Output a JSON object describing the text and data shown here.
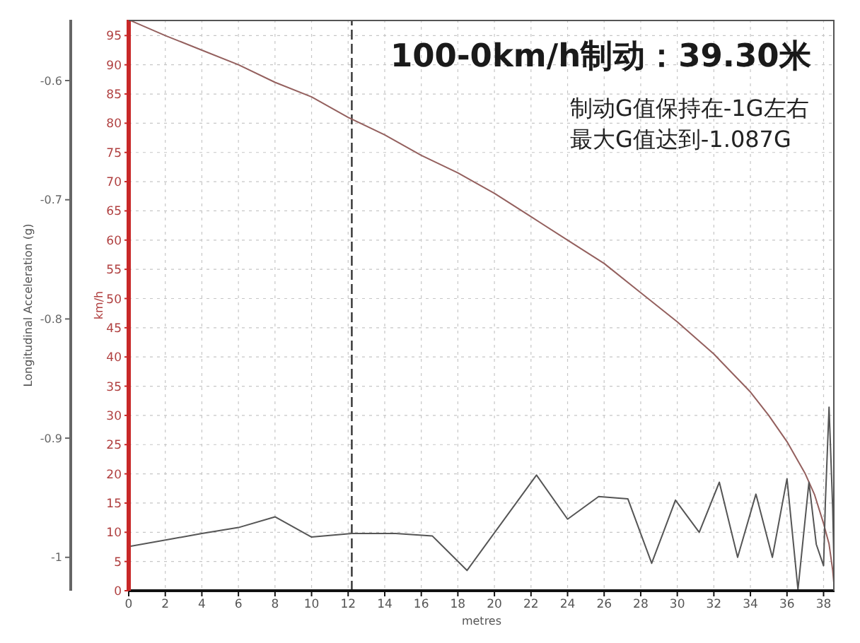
{
  "chart_data": {
    "type": "line",
    "title": "100-0km/h制动：39.30米",
    "annotations": [
      "制动G值保持在-1G左右",
      "最大G值达到-1.087G"
    ],
    "xlabel": "metres",
    "ylabel": "km/h",
    "y2label": "Longitudinal Acceleration (g)",
    "xlim": [
      0,
      38.6
    ],
    "xticks": [
      0,
      2,
      4,
      6,
      8,
      10,
      12,
      14,
      16,
      18,
      20,
      22,
      24,
      26,
      28,
      30,
      32,
      34,
      36,
      38
    ],
    "ylim": [
      0,
      97.7
    ],
    "yticks": [
      0,
      5,
      10,
      15,
      20,
      25,
      30,
      35,
      40,
      45,
      50,
      55,
      60,
      65,
      70,
      75,
      80,
      85,
      90,
      95
    ],
    "y2lim": [
      -1.028,
      -0.549
    ],
    "y2ticks": [
      -1,
      -0.9,
      -0.8,
      -0.7,
      -0.6
    ],
    "grid": true,
    "series": [
      {
        "color": "#94605e",
        "x": [
          0,
          2,
          4,
          6,
          8,
          10,
          12,
          14,
          16,
          18,
          20,
          22,
          24,
          26,
          28,
          30,
          32,
          34,
          35,
          36,
          37,
          37.5,
          38,
          38.3,
          38.5,
          38.6
        ],
        "values": [
          97.7,
          95,
          92.5,
          90,
          87,
          84.5,
          81,
          78,
          74.5,
          71.5,
          68,
          64,
          60,
          56,
          51,
          46,
          40.5,
          34,
          30,
          25.5,
          20,
          16.5,
          11.5,
          8,
          3.5,
          0
        ]
      },
      {
        "color": "#555555",
        "axis": "y2",
        "x": [
          0,
          4,
          6,
          8,
          10,
          12.2,
          14.6,
          16.6,
          18.5,
          22.3,
          24,
          25.7,
          27.3,
          28.6,
          29.9,
          31.2,
          32.3,
          33.3,
          34.3,
          35.2,
          36,
          36.6,
          37.2,
          37.6,
          38,
          38.1,
          38.3,
          38.5,
          38.6
        ],
        "values": [
          -0.991,
          -0.98,
          -0.975,
          -0.966,
          -0.983,
          -0.98,
          -0.98,
          -0.982,
          -1.011,
          -0.931,
          -0.968,
          -0.949,
          -0.951,
          -1.005,
          -0.952,
          -0.979,
          -0.937,
          -1.0,
          -0.947,
          -1.0,
          -0.934,
          -1.027,
          -0.937,
          -0.989,
          -1.007,
          -0.953,
          -0.874,
          -0.959,
          -1.027
        ]
      }
    ],
    "ref_lines": [
      {
        "axis": "x",
        "value": 12.2,
        "color": "#333333",
        "line_style": "dashed"
      }
    ]
  }
}
